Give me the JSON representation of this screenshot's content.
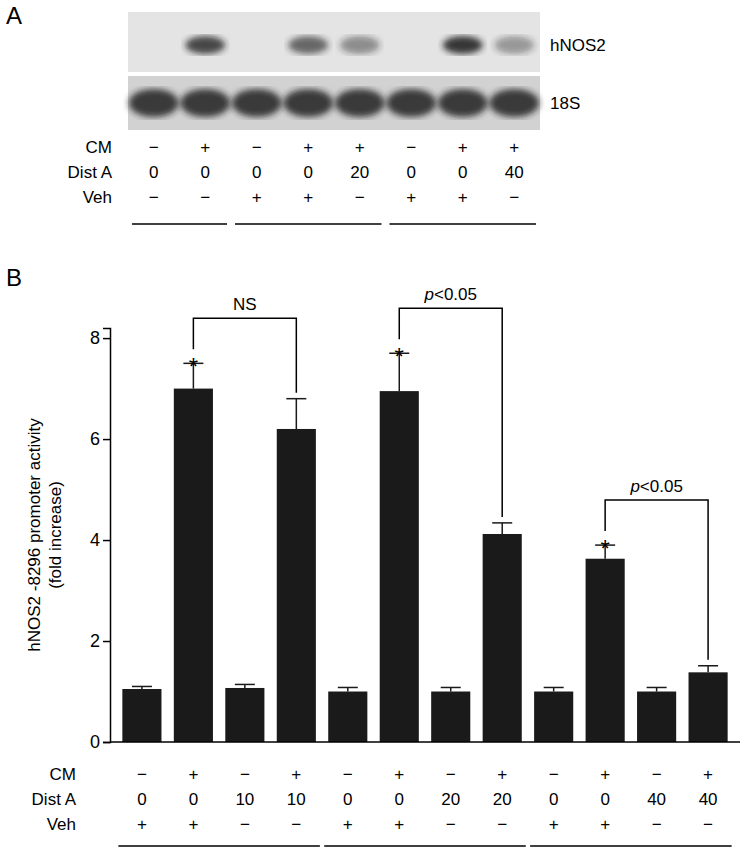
{
  "panel_a": {
    "label": "A",
    "blots": [
      {
        "name": "hNOS2",
        "intensity": [
          0,
          0.8,
          0,
          0.65,
          0.45,
          0,
          0.9,
          0.4
        ]
      },
      {
        "name": "18S",
        "intensity": [
          0.85,
          0.85,
          0.85,
          0.85,
          0.85,
          0.85,
          0.85,
          0.85
        ]
      }
    ],
    "conditions": [
      {
        "label": "CM",
        "values": [
          "−",
          "+",
          "−",
          "+",
          "+",
          "−",
          "+",
          "+"
        ]
      },
      {
        "label": "Dist A",
        "values": [
          0,
          0,
          0,
          0,
          20,
          0,
          0,
          40
        ]
      },
      {
        "label": "Veh",
        "values": [
          "−",
          "−",
          "+",
          "+",
          "−",
          "+",
          "+",
          "−"
        ]
      }
    ],
    "groups": [
      2,
      3,
      3
    ]
  },
  "chart_data": {
    "type": "bar",
    "panel_label": "B",
    "ylabel": [
      "hNOS2 -8296 promoter activity",
      "(fold increase)"
    ],
    "categories": [
      null,
      null,
      null,
      null,
      null,
      null,
      null,
      null,
      null,
      null,
      null,
      null
    ],
    "values": [
      1.05,
      7.0,
      1.07,
      6.2,
      1.0,
      6.95,
      1.0,
      4.12,
      1.0,
      3.63,
      1.0,
      1.38
    ],
    "errors": [
      0.05,
      0.5,
      0.07,
      0.6,
      0.08,
      0.75,
      0.08,
      0.22,
      0.08,
      0.27,
      0.08,
      0.13
    ],
    "color": "#1a1a1a",
    "ylim": [
      0,
      8.2
    ],
    "yticks": [
      0,
      2,
      4,
      6,
      8
    ],
    "conditions": [
      {
        "label": "CM",
        "values": [
          "−",
          "+",
          "−",
          "+",
          "−",
          "+",
          "−",
          "+",
          "−",
          "+",
          "−",
          "+"
        ]
      },
      {
        "label": "Dist A",
        "values": [
          0,
          0,
          10,
          10,
          0,
          0,
          20,
          20,
          0,
          0,
          40,
          40
        ]
      },
      {
        "label": "Veh",
        "values": [
          "+",
          "+",
          "−",
          "−",
          "+",
          "+",
          "−",
          "−",
          "+",
          "+",
          "−",
          "−"
        ]
      }
    ],
    "groups": [
      4,
      4,
      4
    ],
    "significance": [
      {
        "from": 1,
        "to": 3,
        "label": "NS"
      },
      {
        "from": 5,
        "to": 7,
        "label": "p<0.05"
      },
      {
        "from": 9,
        "to": 11,
        "label": "p<0.05"
      }
    ],
    "annotations": [
      {
        "bar": 1,
        "text": "*"
      },
      {
        "bar": 5,
        "text": "*"
      },
      {
        "bar": 9,
        "text": "*"
      }
    ]
  }
}
